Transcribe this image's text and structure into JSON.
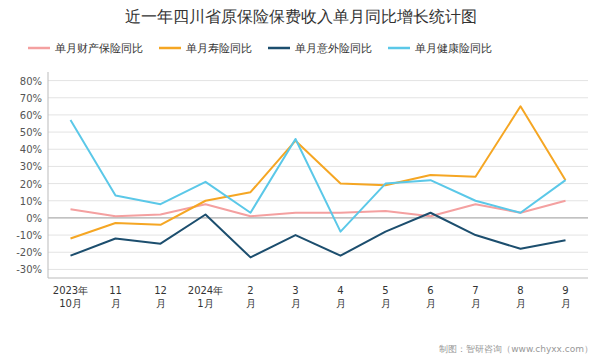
{
  "chart_data": {
    "type": "line",
    "title": "近一年四川省原保险保费收入单月同比增长统计图",
    "categories": [
      "2023年\n10月",
      "11\n月",
      "12\n月",
      "2024年\n1月",
      "2\n月",
      "3\n月",
      "4\n月",
      "5\n月",
      "6\n月",
      "7\n月",
      "8\n月",
      "9\n月"
    ],
    "series": [
      {
        "name": "单月财产保险同比",
        "color": "#F4A0A0",
        "values": [
          5,
          1,
          2,
          8,
          1,
          3,
          3,
          4,
          1,
          8,
          3,
          10
        ]
      },
      {
        "name": "单月寿险同比",
        "color": "#F5A623",
        "values": [
          -12,
          -3,
          -4,
          10,
          15,
          45,
          20,
          19,
          25,
          24,
          65,
          22
        ]
      },
      {
        "name": "单月意外险同比",
        "color": "#1C4E6E",
        "values": [
          -22,
          -12,
          -15,
          2,
          -23,
          -10,
          -22,
          -8,
          3,
          -10,
          -18,
          -13
        ]
      },
      {
        "name": "单月健康险同比",
        "color": "#5BC8E8",
        "values": [
          57,
          13,
          8,
          21,
          3,
          46,
          -8,
          20,
          22,
          10,
          3,
          22
        ]
      }
    ],
    "ylim": [
      -35,
      85
    ],
    "yticks": [
      {
        "value": -30,
        "label": "-30%"
      },
      {
        "value": -20,
        "label": "-20%"
      },
      {
        "value": -10,
        "label": "-10%"
      },
      {
        "value": 0,
        "label": "0%"
      },
      {
        "value": 10,
        "label": "10%"
      },
      {
        "value": 20,
        "label": "20%"
      },
      {
        "value": 30,
        "label": "30%"
      },
      {
        "value": 40,
        "label": "40%"
      },
      {
        "value": 50,
        "label": "50%"
      },
      {
        "value": 60,
        "label": "60%"
      },
      {
        "value": 70,
        "label": "70%"
      },
      {
        "value": 80,
        "label": "80%"
      }
    ],
    "grid": true,
    "legend": "upper left",
    "annotations": [
      "制图：智研咨询（www.chyxx.com）"
    ]
  }
}
